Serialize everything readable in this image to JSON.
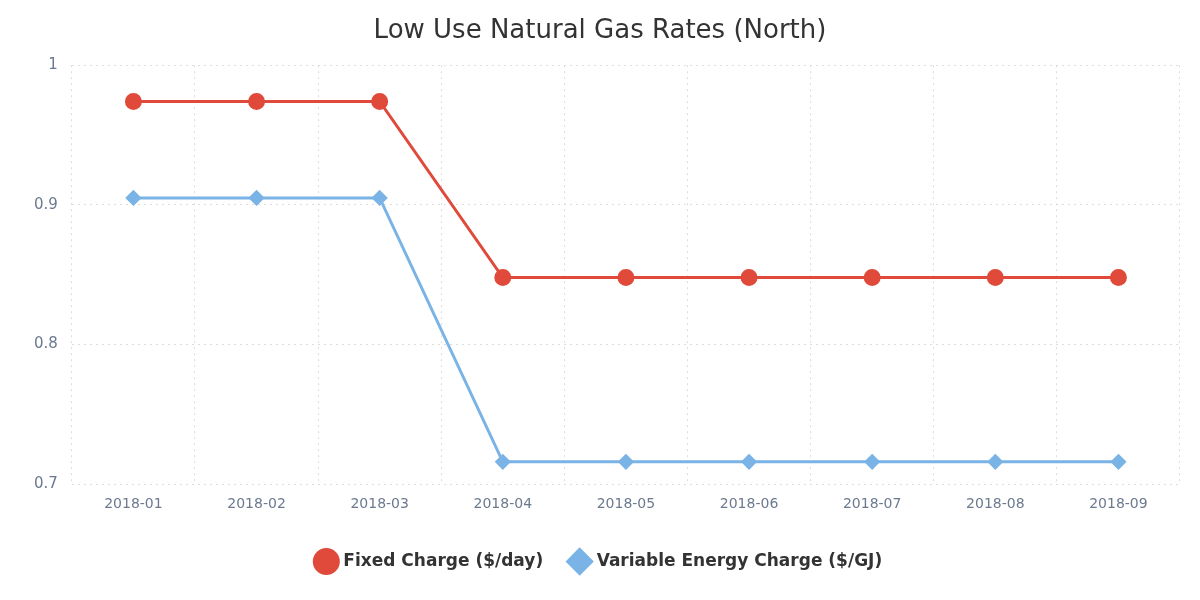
{
  "chart_data": {
    "type": "line",
    "title": "Low Use Natural Gas Rates (North)",
    "categories": [
      "2018-01",
      "2018-02",
      "2018-03",
      "2018-04",
      "2018-05",
      "2018-06",
      "2018-07",
      "2018-08",
      "2018-09"
    ],
    "series": [
      {
        "name": "Fixed Charge ($/day)",
        "color": "#e04a3a",
        "marker": "circle",
        "line_style": "solid",
        "values": [
          0.974,
          0.974,
          0.974,
          0.848,
          0.848,
          0.848,
          0.848,
          0.848,
          0.848
        ]
      },
      {
        "name": "Variable Energy Charge ($/GJ)",
        "color": "#7ab3e5",
        "marker": "diamond",
        "line_style": "solid",
        "values": [
          0.905,
          0.905,
          0.905,
          0.716,
          0.716,
          0.716,
          0.716,
          0.716,
          0.716
        ]
      }
    ],
    "ylim": [
      0.7,
      1
    ],
    "yticks": [
      0.7,
      0.8,
      0.9,
      1
    ],
    "grid": true,
    "legend": "bottom"
  }
}
